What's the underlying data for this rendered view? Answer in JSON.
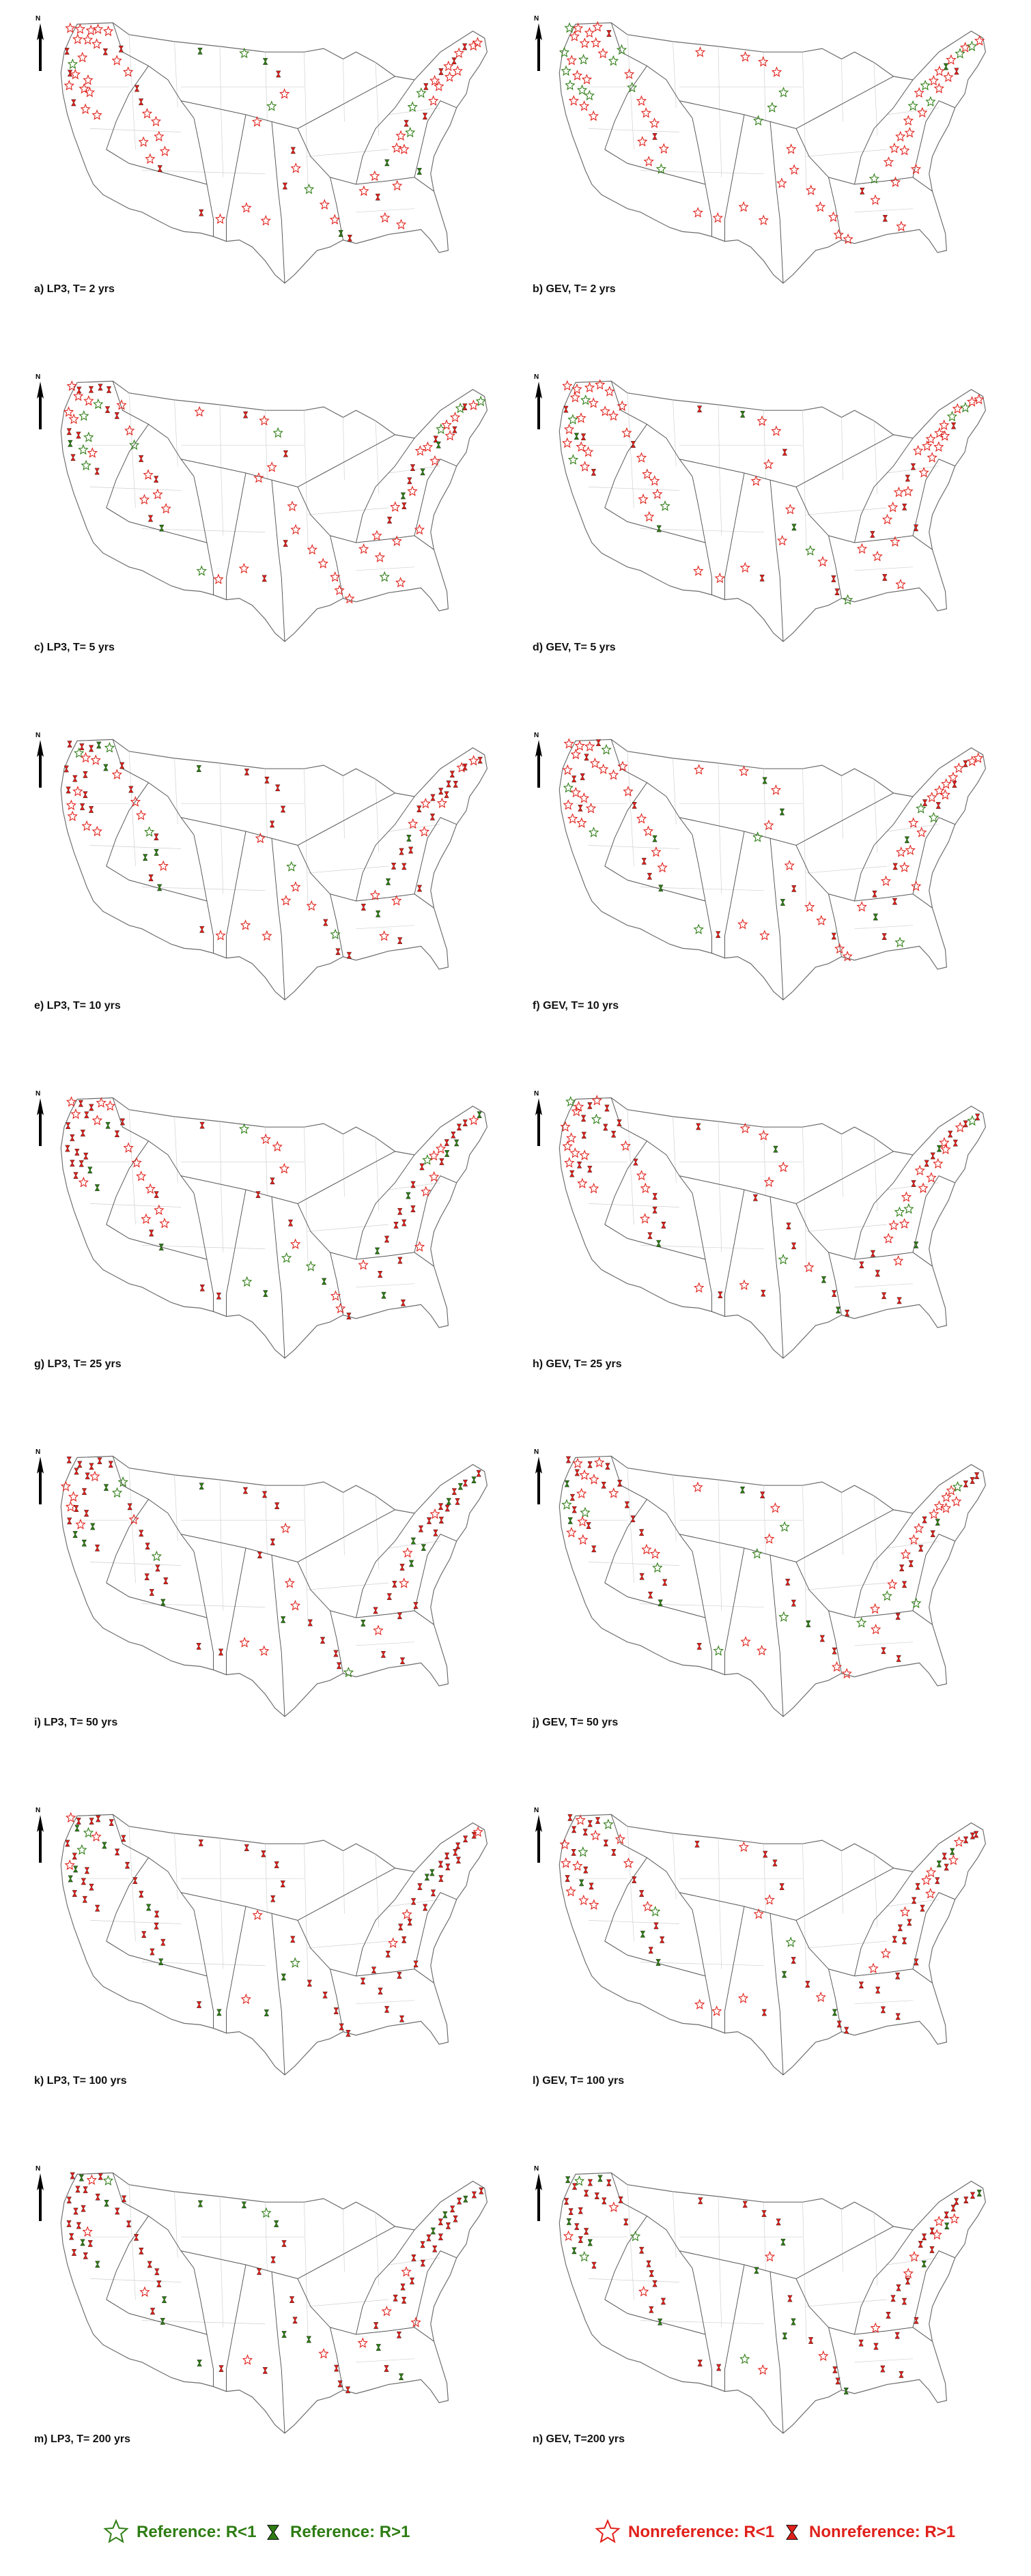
{
  "panels": [
    {
      "label": "a) LP3, T= 2 yrs",
      "method": "LP3",
      "period": 2
    },
    {
      "label": "b) GEV, T= 2 yrs",
      "method": "GEV",
      "period": 2
    },
    {
      "label": "c) LP3, T= 5 yrs",
      "method": "LP3",
      "period": 5
    },
    {
      "label": "d) GEV, T= 5 yrs",
      "method": "GEV",
      "period": 5
    },
    {
      "label": "e) LP3, T= 10 yrs",
      "method": "LP3",
      "period": 10
    },
    {
      "label": "f) GEV, T= 10 yrs",
      "method": "GEV",
      "period": 10
    },
    {
      "label": "g) LP3, T= 25 yrs",
      "method": "LP3",
      "period": 25
    },
    {
      "label": "h) GEV, T= 25 yrs",
      "method": "GEV",
      "period": 25
    },
    {
      "label": "i) LP3, T= 50 yrs",
      "method": "LP3",
      "period": 50
    },
    {
      "label": "j) GEV, T= 50 yrs",
      "method": "GEV",
      "period": 50
    },
    {
      "label": "k) LP3, T= 100 yrs",
      "method": "LP3",
      "period": 100
    },
    {
      "label": "l) GEV, T= 100 yrs",
      "method": "GEV",
      "period": 100
    },
    {
      "label": "m) LP3, T= 200 yrs",
      "method": "LP3",
      "period": 200
    },
    {
      "label": "n) GEV, T=200 yrs",
      "method": "GEV",
      "period": 200
    }
  ],
  "north_label": "N",
  "legend": {
    "items": [
      {
        "label": "Reference: R<1",
        "symbol": "star-outline",
        "color": "#2e7d14"
      },
      {
        "label": "Reference: R>1",
        "symbol": "hourglass",
        "color": "#2e7d14"
      },
      {
        "label": "Nonreference: R<1",
        "symbol": "star-outline",
        "color": "#e0201a"
      },
      {
        "label": "Nonreference: R>1",
        "symbol": "hourglass",
        "color": "#e0201a"
      }
    ]
  },
  "colors": {
    "reference": "#2e7d14",
    "nonreference": "#e0201a",
    "boundary": "#6b6b6b"
  },
  "map_type": "point symbol map of contiguous United States with river basin boundaries"
}
